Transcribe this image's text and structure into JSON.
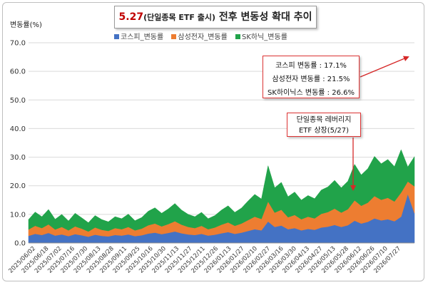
{
  "title": {
    "highlight": "5.27",
    "paren": "(단일종목 ETF 출시)",
    "rest": " 전후 변동성 확대 추이"
  },
  "colors": {
    "kospi": "#4472c4",
    "samsung": "#ed7d31",
    "sk": "#21a34a",
    "arrow": "#d62828"
  },
  "chart_data": {
    "type": "area",
    "stacked": true,
    "ylabel": "변동률(%)",
    "ylim": [
      0,
      70
    ],
    "yticks": [
      "0.0",
      "10.0",
      "20.0",
      "30.0",
      "40.0",
      "50.0",
      "60.0",
      "70.0"
    ],
    "grid": true,
    "legend_position": "top-center",
    "x_tick_labels": [
      "2025/06/02",
      "2025/06/18",
      "2025/07/02",
      "2025/07/16",
      "2025/07/30",
      "2025/08/13",
      "2025/08/28",
      "2025/09/11",
      "2025/09/25",
      "2025/10/16",
      "2025/10/30",
      "2025/11/13",
      "2025/11/27",
      "2025/12/11",
      "2025/12/26",
      "2026/01/13",
      "2026/01/27",
      "2026/02/10",
      "2026/02/27",
      "2026/03/16",
      "2026/03/30",
      "2026/04/13",
      "2026/04/27",
      "2026/05/13",
      "2026/05/28",
      "2026/06/12",
      "2026/06/26",
      "2026/07/10",
      "2026/07/27"
    ],
    "x": [
      "2025/06/02",
      "2025/06/10",
      "2025/06/18",
      "2025/06/25",
      "2025/07/02",
      "2025/07/09",
      "2025/07/16",
      "2025/07/23",
      "2025/07/30",
      "2025/08/06",
      "2025/08/13",
      "2025/08/21",
      "2025/08/28",
      "2025/09/04",
      "2025/09/11",
      "2025/09/18",
      "2025/09/25",
      "2025/10/08",
      "2025/10/16",
      "2025/10/23",
      "2025/10/30",
      "2025/11/06",
      "2025/11/13",
      "2025/11/20",
      "2025/11/27",
      "2025/12/04",
      "2025/12/11",
      "2025/12/18",
      "2025/12/26",
      "2026/01/05",
      "2026/01/13",
      "2026/01/20",
      "2026/01/27",
      "2026/02/03",
      "2026/02/10",
      "2026/02/19",
      "2026/02/27",
      "2026/03/06",
      "2026/03/16",
      "2026/03/23",
      "2026/03/30",
      "2026/04/06",
      "2026/04/13",
      "2026/04/20",
      "2026/04/27",
      "2026/05/06",
      "2026/05/13",
      "2026/05/20",
      "2026/05/28",
      "2026/06/04",
      "2026/06/12",
      "2026/06/19",
      "2026/06/26",
      "2026/07/03",
      "2026/07/10",
      "2026/07/17",
      "2026/07/24",
      "2026/07/27",
      "2026/07/31"
    ],
    "series": [
      {
        "name": "코스피_변동률",
        "values": [
          2.5,
          3.2,
          2.8,
          3.5,
          2.6,
          3.0,
          2.4,
          3.1,
          2.7,
          2.2,
          2.9,
          2.5,
          2.3,
          2.8,
          2.6,
          3.0,
          2.4,
          2.7,
          3.3,
          3.6,
          3.1,
          3.5,
          4.0,
          3.4,
          3.0,
          2.8,
          3.2,
          2.6,
          2.9,
          3.4,
          3.8,
          3.2,
          3.6,
          4.2,
          4.8,
          4.4,
          7.5,
          5.6,
          6.1,
          4.8,
          5.2,
          4.4,
          4.9,
          4.6,
          5.4,
          5.7,
          6.3,
          5.6,
          6.2,
          7.8,
          6.8,
          7.4,
          8.6,
          7.9,
          8.3,
          7.6,
          9.2,
          17.1,
          10.4
        ]
      },
      {
        "name": "삼성전자_변동률",
        "values": [
          2.2,
          2.8,
          2.4,
          3.0,
          2.1,
          2.6,
          2.0,
          2.7,
          2.3,
          1.8,
          2.5,
          2.1,
          1.9,
          2.4,
          2.2,
          2.6,
          2.0,
          2.3,
          2.9,
          3.2,
          2.7,
          3.1,
          3.6,
          3.0,
          2.6,
          2.4,
          2.8,
          2.2,
          2.5,
          3.0,
          3.4,
          2.8,
          3.2,
          3.8,
          4.4,
          4.0,
          7.0,
          5.0,
          5.5,
          4.2,
          4.6,
          3.9,
          4.3,
          4.0,
          4.8,
          5.1,
          5.7,
          5.0,
          5.6,
          7.1,
          6.2,
          6.7,
          7.8,
          7.2,
          7.5,
          6.9,
          8.4,
          4.4,
          9.4
        ]
      },
      {
        "name": "SK하닉_변동률",
        "values": [
          3.5,
          4.8,
          4.0,
          5.2,
          3.6,
          4.4,
          3.3,
          4.6,
          3.8,
          3.1,
          4.2,
          3.6,
          3.2,
          4.0,
          3.7,
          4.5,
          3.4,
          3.9,
          4.9,
          5.5,
          4.6,
          5.3,
          6.2,
          5.1,
          4.4,
          4.0,
          4.7,
          3.7,
          4.2,
          5.1,
          5.8,
          4.7,
          5.4,
          6.7,
          7.8,
          7.0,
          12.5,
          8.7,
          9.6,
          7.2,
          8.0,
          6.7,
          7.4,
          6.9,
          8.3,
          8.8,
          9.9,
          8.7,
          9.8,
          12.6,
          10.8,
          11.9,
          13.9,
          12.6,
          13.4,
          12.2,
          15.0,
          5.1,
          10.4
        ]
      }
    ],
    "annotations": [
      {
        "lines": [
          "코스피 변동률 : 17.1%",
          "삼성전자 변동률 : 21.5%",
          "SK하이닉스 변동률 : 26.6%"
        ]
      },
      {
        "lines": [
          "단일종목 레버리지",
          "ETF 상장(5/27)"
        ]
      }
    ]
  }
}
